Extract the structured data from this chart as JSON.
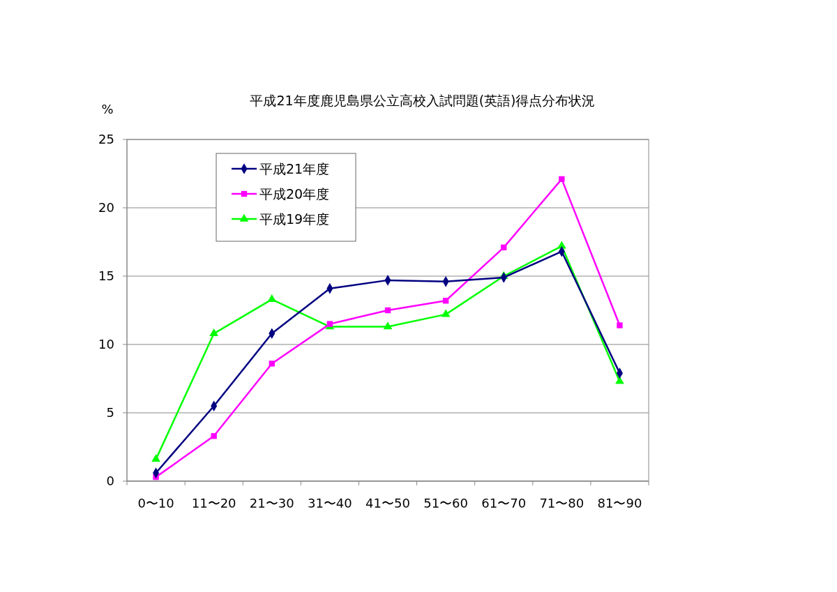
{
  "chart_data": {
    "type": "line",
    "title": "平成21年度鹿児島県公立高校入試問題(英語)得点分布状況",
    "ylabel": "%",
    "categories": [
      "0〜10",
      "11〜20",
      "21〜30",
      "31〜40",
      "41〜50",
      "51〜60",
      "61〜70",
      "71〜80",
      "81〜90"
    ],
    "series": [
      {
        "name": "平成21年度",
        "color": "#000080",
        "marker": "diamond",
        "values": [
          0.6,
          5.5,
          10.8,
          14.1,
          14.7,
          14.6,
          14.9,
          16.8,
          7.9
        ]
      },
      {
        "name": "平成20年度",
        "color": "#ff00ff",
        "marker": "square",
        "values": [
          0.3,
          3.3,
          8.6,
          11.5,
          12.5,
          13.2,
          17.1,
          22.1,
          11.4
        ]
      },
      {
        "name": "平成19年度",
        "color": "#00ff00",
        "marker": "triangle",
        "values": [
          1.6,
          10.8,
          13.3,
          11.3,
          11.3,
          12.2,
          15.0,
          17.2,
          7.3
        ]
      }
    ],
    "ylim": [
      0,
      25
    ],
    "yticks": [
      0,
      5,
      10,
      15,
      20,
      25
    ],
    "grid": "y",
    "legend": "top left"
  }
}
